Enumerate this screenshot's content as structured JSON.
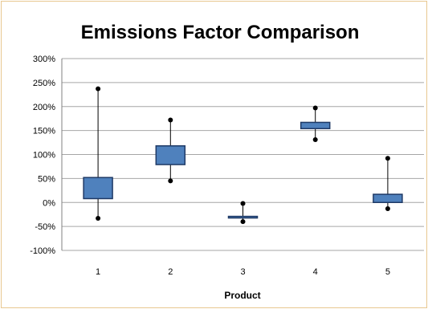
{
  "chart_data": {
    "type": "box",
    "title": "Emissions Factor Comparison",
    "xlabel": "Product",
    "ylabel": "",
    "ylim": [
      -100,
      300
    ],
    "y_ticks": [
      300,
      250,
      200,
      150,
      100,
      50,
      0,
      -50,
      -100
    ],
    "y_tick_labels": [
      "300%",
      "250%",
      "200%",
      "150%",
      "100%",
      "50%",
      "0%",
      "-50%",
      "-100%"
    ],
    "categories": [
      "1",
      "2",
      "3",
      "4",
      "5"
    ],
    "boxes": [
      {
        "category": "1",
        "min": -33,
        "q1": 8,
        "q3": 52,
        "max": 237
      },
      {
        "category": "2",
        "min": 45,
        "q1": 79,
        "q3": 118,
        "max": 172
      },
      {
        "category": "3",
        "min": -40,
        "q1": -31,
        "q3": -29,
        "max": -2
      },
      {
        "category": "4",
        "min": 131,
        "q1": 154,
        "q3": 167,
        "max": 197
      },
      {
        "category": "5",
        "min": -13,
        "q1": 0,
        "q3": 17,
        "max": 92
      }
    ],
    "grid": true,
    "legend": "none",
    "colors": {
      "box_fill": "#4f81bd",
      "box_stroke": "#1f3a66",
      "whisker": "#000000",
      "grid": "#a6a6a6"
    }
  }
}
